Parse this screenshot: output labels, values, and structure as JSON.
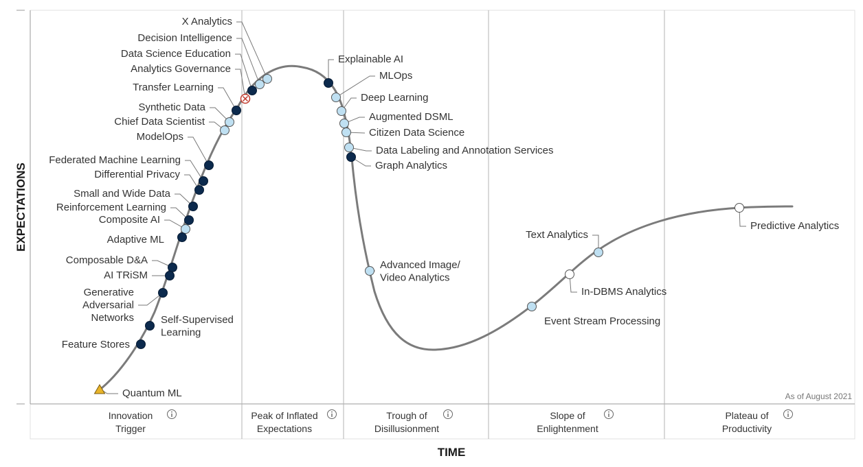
{
  "axes": {
    "y_label": "EXPECTATIONS",
    "x_label": "TIME"
  },
  "as_of": "As of August 2021",
  "phases": [
    {
      "lines": [
        "Innovation",
        "Trigger"
      ]
    },
    {
      "lines": [
        "Peak of Inflated",
        "Expectations"
      ]
    },
    {
      "lines": [
        "Trough of",
        "Disillusionment"
      ]
    },
    {
      "lines": [
        "Slope of",
        "Enlightenment"
      ]
    },
    {
      "lines": [
        "Plateau of",
        "Productivity"
      ]
    }
  ],
  "legend_colors": {
    "less_than_2_years": "#ffffff",
    "2_to_5_years": "#bfe0f2",
    "5_to_10_years": "#0c2a4d",
    "obsolete_before_plateau": "#c0392b",
    "more_than_10_years": "#e8b429"
  },
  "technologies": [
    {
      "lines": [
        "X Analytics"
      ],
      "category": "2_to_5_years"
    },
    {
      "lines": [
        "Decision Intelligence"
      ],
      "category": "2_to_5_years"
    },
    {
      "lines": [
        "Data Science Education"
      ],
      "category": "5_to_10_years"
    },
    {
      "lines": [
        "Analytics Governance"
      ],
      "category": "obsolete_before_plateau"
    },
    {
      "lines": [
        "Transfer Learning"
      ],
      "category": "5_to_10_years"
    },
    {
      "lines": [
        "Synthetic Data"
      ],
      "category": "2_to_5_years"
    },
    {
      "lines": [
        "Chief Data Scientist"
      ],
      "category": "2_to_5_years"
    },
    {
      "lines": [
        "ModelOps"
      ],
      "category": "5_to_10_years"
    },
    {
      "lines": [
        "Federated Machine Learning"
      ],
      "category": "5_to_10_years"
    },
    {
      "lines": [
        "Differential Privacy"
      ],
      "category": "5_to_10_years"
    },
    {
      "lines": [
        "Small and Wide Data"
      ],
      "category": "5_to_10_years"
    },
    {
      "lines": [
        "Reinforcement Learning"
      ],
      "category": "5_to_10_years"
    },
    {
      "lines": [
        "Composite AI"
      ],
      "category": "2_to_5_years"
    },
    {
      "lines": [
        "Adaptive ML"
      ],
      "category": "5_to_10_years"
    },
    {
      "lines": [
        "Composable D&A"
      ],
      "category": "5_to_10_years"
    },
    {
      "lines": [
        "AI TRiSM"
      ],
      "category": "5_to_10_years"
    },
    {
      "lines": [
        "Generative",
        "Adversarial",
        "Networks"
      ],
      "category": "5_to_10_years"
    },
    {
      "lines": [
        "Self-Supervised",
        "Learning"
      ],
      "category": "5_to_10_years"
    },
    {
      "lines": [
        "Feature Stores"
      ],
      "category": "5_to_10_years"
    },
    {
      "lines": [
        "Quantum ML"
      ],
      "category": "more_than_10_years"
    },
    {
      "lines": [
        "Explainable AI"
      ],
      "category": "5_to_10_years"
    },
    {
      "lines": [
        "MLOps"
      ],
      "category": "2_to_5_years"
    },
    {
      "lines": [
        "Deep Learning"
      ],
      "category": "2_to_5_years"
    },
    {
      "lines": [
        "Augmented DSML"
      ],
      "category": "2_to_5_years"
    },
    {
      "lines": [
        "Citizen Data Science"
      ],
      "category": "2_to_5_years"
    },
    {
      "lines": [
        "Data Labeling and Annotation Services"
      ],
      "category": "2_to_5_years"
    },
    {
      "lines": [
        "Graph Analytics"
      ],
      "category": "5_to_10_years"
    },
    {
      "lines": [
        "Advanced Image/",
        "Video Analytics"
      ],
      "category": "2_to_5_years"
    },
    {
      "lines": [
        "Text Analytics"
      ],
      "category": "2_to_5_years"
    },
    {
      "lines": [
        "In-DBMS Analytics"
      ],
      "category": "less_than_2_years"
    },
    {
      "lines": [
        "Event Stream Processing"
      ],
      "category": "2_to_5_years"
    },
    {
      "lines": [
        "Predictive Analytics"
      ],
      "category": "less_than_2_years"
    }
  ]
}
